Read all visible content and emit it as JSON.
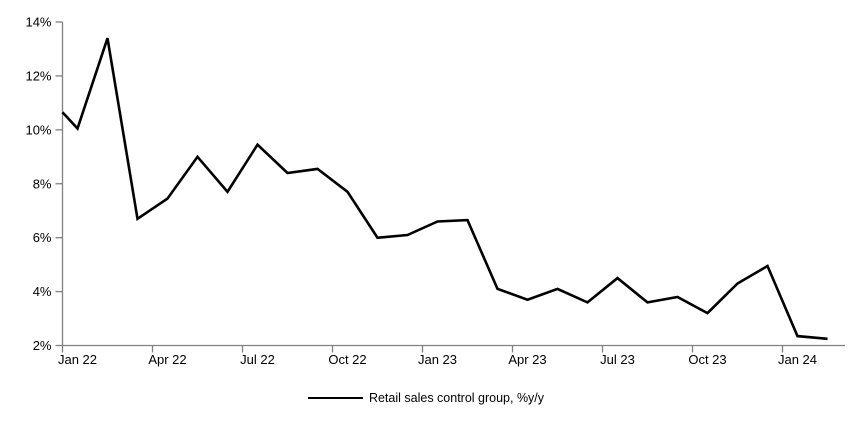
{
  "chart_data": {
    "type": "line",
    "title": "",
    "xlabel": "",
    "ylabel": "",
    "grid": false,
    "x_months": [
      "Jan 22",
      "Feb 22",
      "Mar 22",
      "Apr 22",
      "May 22",
      "Jun 22",
      "Jul 22",
      "Aug 22",
      "Sep 22",
      "Oct 22",
      "Nov 22",
      "Dec 22",
      "Jan 23",
      "Feb 23",
      "Mar 23",
      "Apr 23",
      "May 23",
      "Jun 23",
      "Jul 23",
      "Aug 23",
      "Sep 23",
      "Oct 23",
      "Nov 23",
      "Dec 23",
      "Jan 24",
      "Feb 24"
    ],
    "series": [
      {
        "name": "Retail sales control group, %y/y",
        "color": "#000000",
        "values": [
          10.05,
          13.4,
          6.7,
          7.45,
          9.0,
          7.7,
          9.45,
          8.4,
          8.55,
          7.7,
          6.0,
          6.1,
          6.6,
          6.65,
          4.1,
          3.7,
          4.1,
          3.6,
          4.5,
          3.6,
          3.8,
          3.2,
          4.3,
          4.95,
          2.35,
          2.25
        ]
      }
    ],
    "line_start_at_axis_value": 10.65,
    "x_tick_labels": [
      "Jan 22",
      "Apr 22",
      "Jul 22",
      "Oct 22",
      "Jan 23",
      "Apr 23",
      "Jul 23",
      "Oct 23",
      "Jan 24"
    ],
    "y_tick_labels": [
      "2%",
      "4%",
      "6%",
      "8%",
      "10%",
      "12%",
      "14%"
    ],
    "ylim": [
      2,
      14
    ],
    "legend": {
      "label": "Retail sales control group, %y/y",
      "position": "bottom-center"
    },
    "colors": {
      "line": "#000000",
      "axis": "#808080",
      "text": "#000000",
      "background": "#ffffff"
    }
  }
}
